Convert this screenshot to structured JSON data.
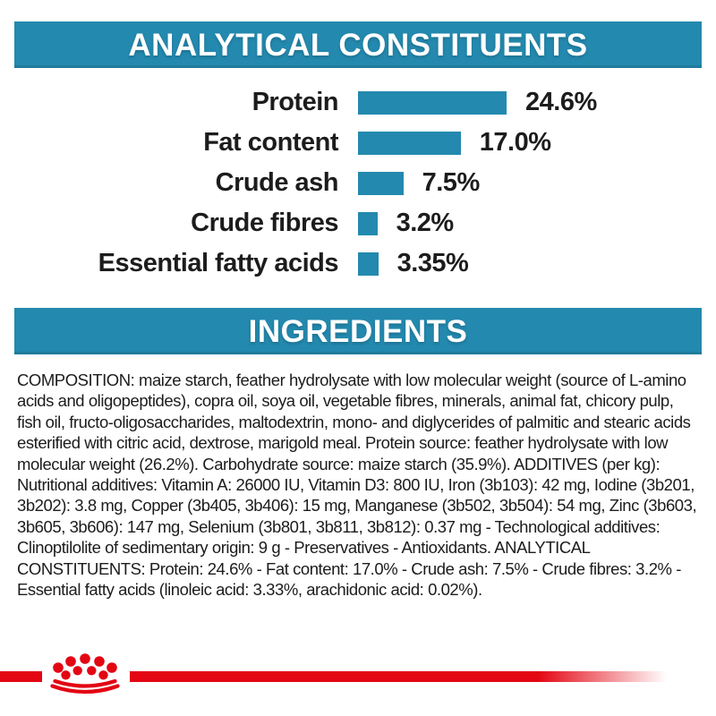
{
  "colors": {
    "background": "#ffffff",
    "teal": "#2389ae",
    "red": "#e30613",
    "text": "#1c1c1c"
  },
  "sections": {
    "analytical": {
      "title": "ANALYTICAL CONSTITUENTS"
    },
    "ingredients": {
      "title": "INGREDIENTS",
      "composition_text": "COMPOSITION: maize starch, feather hydrolysate with low molecular weight (source of L-amino acids and oligopeptides), copra oil, soya oil, vegetable fibres, minerals, animal fat, chicory pulp, fish oil, fructo-oligosaccharides, maltodextrin, mono- and diglycerides of palmitic and stearic acids esterified with citric acid, dextrose, marigold meal. Protein source: feather hydrolysate with low molecular weight (26.2%). Carbohydrate source: maize starch (35.9%). ADDITIVES (per kg): Nutritional additives: Vitamin A: 26000 IU, Vitamin D3: 800 IU, Iron (3b103): 42 mg, Iodine (3b201, 3b202): 3.8 mg, Copper (3b405, 3b406): 15 mg, Manganese (3b502, 3b504): 54 mg, Zinc (3b603, 3b605, 3b606): 147 mg, Selenium (3b801, 3b811, 3b812): 0.37 mg - Technological additives: Clinoptilolite of sedimentary origin: 9 g - Preservatives - Antioxidants. ANALYTICAL CONSTITUENTS: Protein: 24.6% - Fat content: 17.0% - Crude ash: 7.5% - Crude fibres: 3.2% - Essential fatty acids (linoleic acid: 3.33%, arachidonic acid: 0.02%)."
    }
  },
  "chart_data": {
    "type": "bar",
    "orientation": "horizontal",
    "title": "ANALYTICAL CONSTITUENTS",
    "categories": [
      "Protein",
      "Fat content",
      "Crude ash",
      "Crude fibres",
      "Essential fatty acids"
    ],
    "values": [
      24.6,
      17.0,
      7.5,
      3.2,
      3.35
    ],
    "value_labels": [
      "24.6%",
      "17.0%",
      "7.5%",
      "3.2%",
      "3.35%"
    ],
    "unit": "%",
    "xlim": [
      0,
      26
    ],
    "bar_color": "#2389ae",
    "grid": false,
    "legend": false,
    "value_label_position": "right-of-bar",
    "category_label_position": "left-of-bar"
  },
  "footer": {
    "logo": "royal-canin-crown",
    "divider": "red-line-fading-right"
  }
}
